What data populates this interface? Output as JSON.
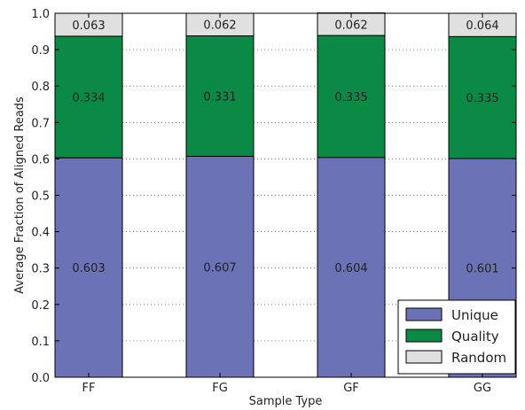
{
  "chart_data": {
    "type": "bar",
    "stacked": true,
    "title": "",
    "xlabel": "Sample Type",
    "ylabel": "Average Fraction of Aligned Reads",
    "ylim": [
      0.0,
      1.0
    ],
    "yticks": [
      0.0,
      0.1,
      0.2,
      0.3,
      0.4,
      0.5,
      0.6,
      0.7,
      0.8,
      0.9,
      1.0
    ],
    "ytick_labels": [
      "0.0",
      "0.1",
      "0.2",
      "0.3",
      "0.4",
      "0.5",
      "0.6",
      "0.7",
      "0.8",
      "0.9",
      "1.0"
    ],
    "grid": "horizontal dotted",
    "legend_position": "bottom-right",
    "categories": [
      "FF",
      "FG",
      "GF",
      "GG"
    ],
    "series": [
      {
        "name": "Unique",
        "color": "#6b72b6",
        "values": [
          0.603,
          0.607,
          0.604,
          0.601
        ],
        "labels": [
          "0.603",
          "0.607",
          "0.604",
          "0.601"
        ]
      },
      {
        "name": "Quality",
        "color": "#0b8a45",
        "values": [
          0.334,
          0.331,
          0.335,
          0.335
        ],
        "labels": [
          "0.334",
          "0.331",
          "0.335",
          "0.335"
        ]
      },
      {
        "name": "Random",
        "color": "#e0e0e0",
        "values": [
          0.063,
          0.062,
          0.062,
          0.064
        ],
        "labels": [
          "0.063",
          "0.062",
          "0.062",
          "0.064"
        ]
      }
    ]
  }
}
